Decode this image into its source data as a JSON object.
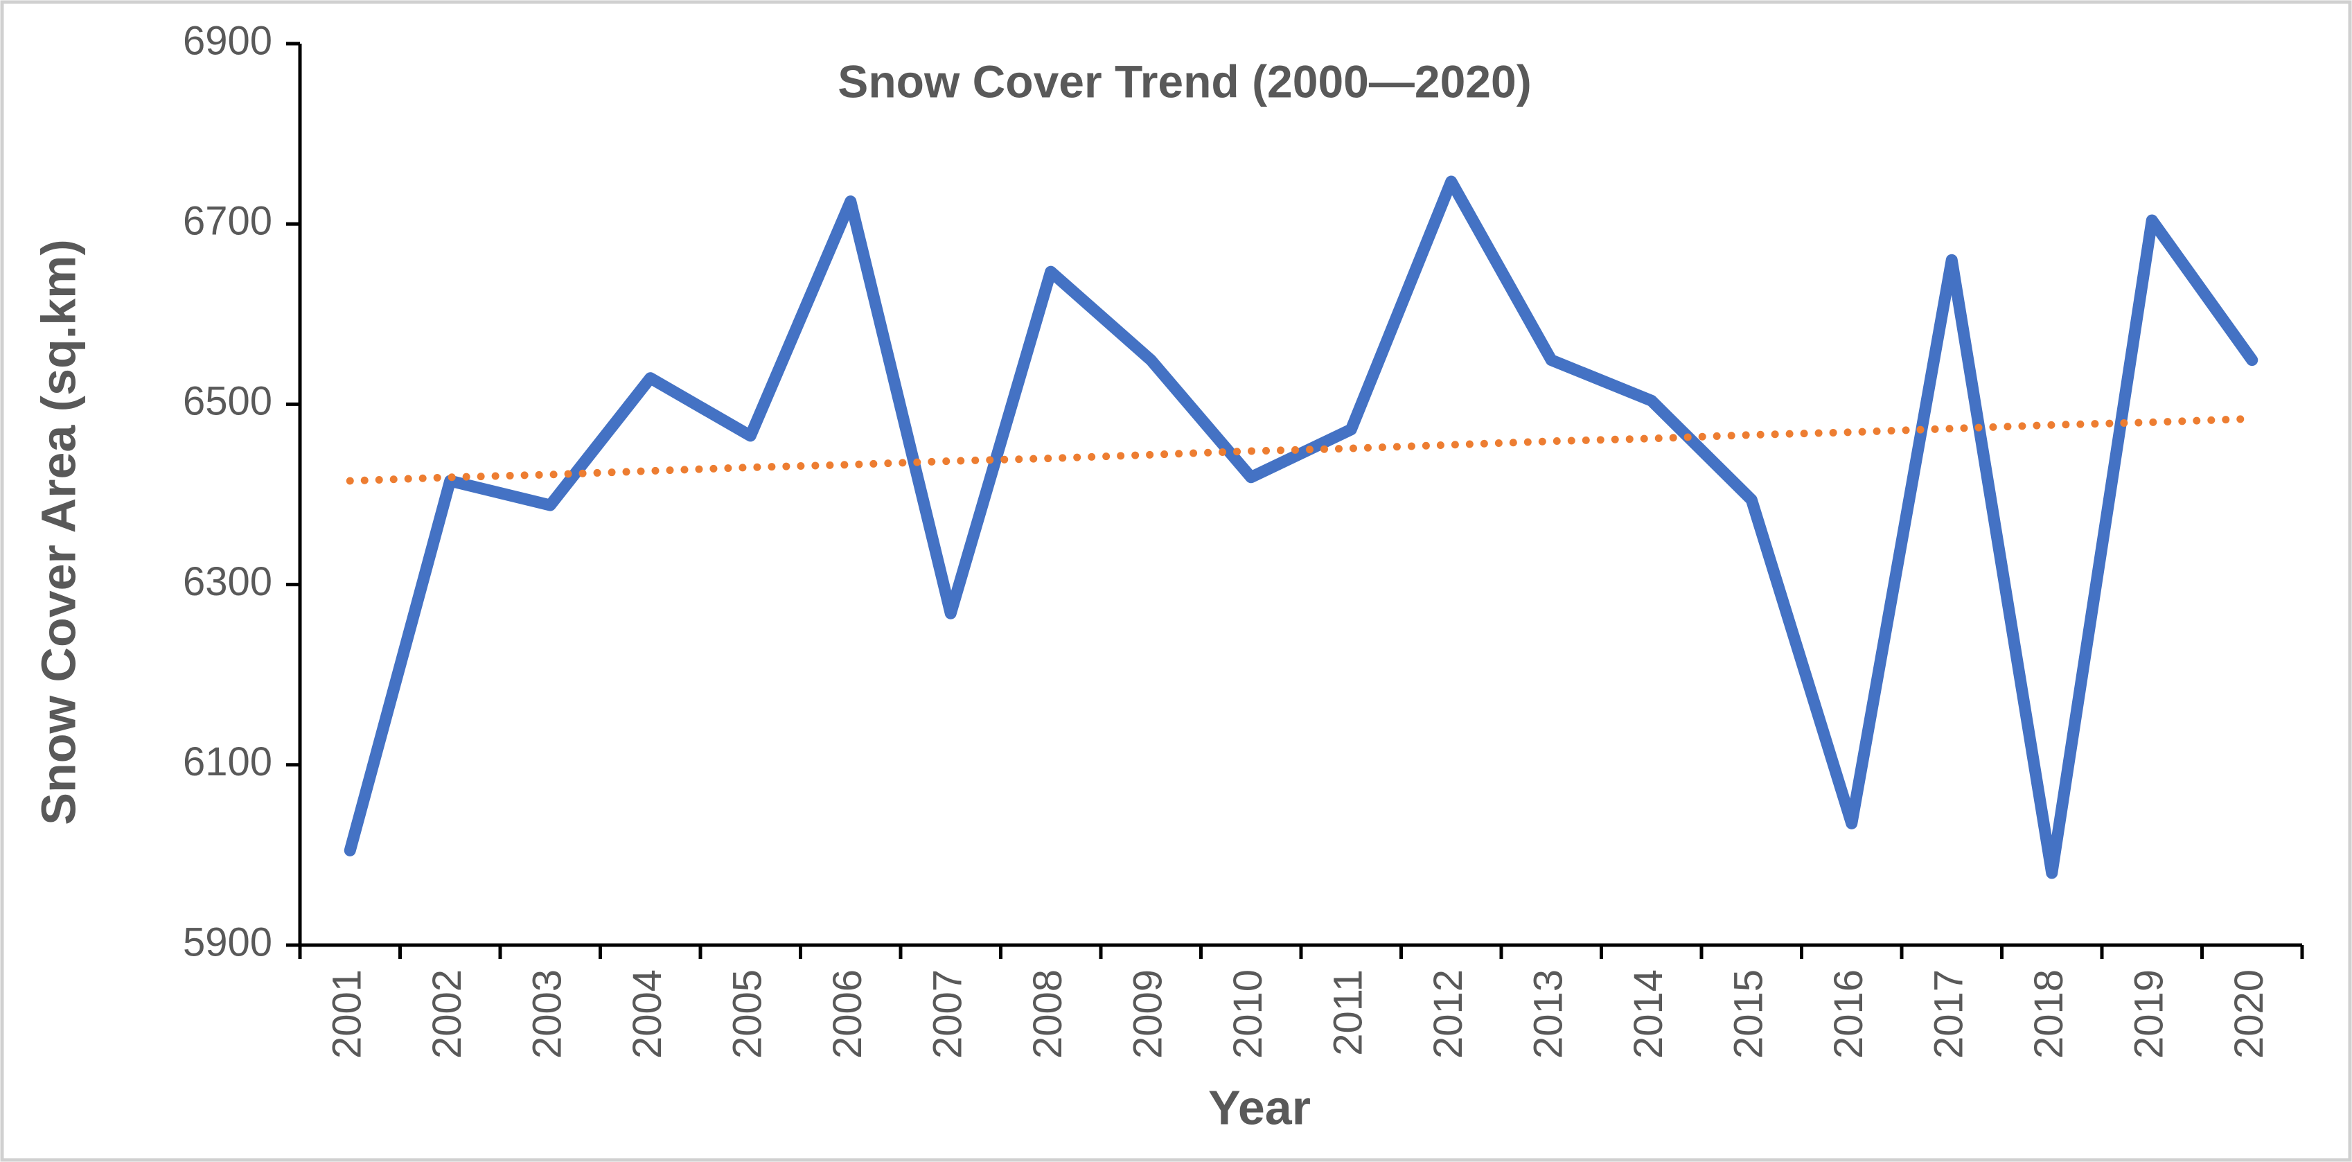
{
  "chart_data": {
    "type": "line",
    "title": "Snow Cover Trend (2000—2020)",
    "x_label": "Year",
    "y_label": "Snow Cover Area (sq.km)",
    "categories": [
      "2001",
      "2002",
      "2003",
      "2004",
      "2005",
      "2006",
      "2007",
      "2008",
      "2009",
      "2010",
      "2011",
      "2012",
      "2013",
      "2014",
      "2015",
      "2016",
      "2017",
      "2018",
      "2019",
      "2020"
    ],
    "series": [
      {
        "color": "#4472c4",
        "style": "solid",
        "values": [
          6005,
          6415,
          6388,
          6529,
          6465,
          6725,
          6268,
          6647,
          6549,
          6419,
          6472,
          6747,
          6549,
          6504,
          6394,
          6035,
          6660,
          5980,
          6704,
          6549
        ]
      },
      {
        "color": "#ed7d31",
        "style": "dotted",
        "values": [
          6415,
          6419,
          6422,
          6426,
          6430,
          6433,
          6437,
          6440,
          6444,
          6448,
          6451,
          6455,
          6459,
          6462,
          6466,
          6469,
          6473,
          6477,
          6480,
          6484
        ]
      }
    ],
    "ylim": [
      5900,
      6900
    ],
    "yticks": [
      5900,
      6100,
      6300,
      6500,
      6700,
      6900
    ],
    "grid": false
  }
}
